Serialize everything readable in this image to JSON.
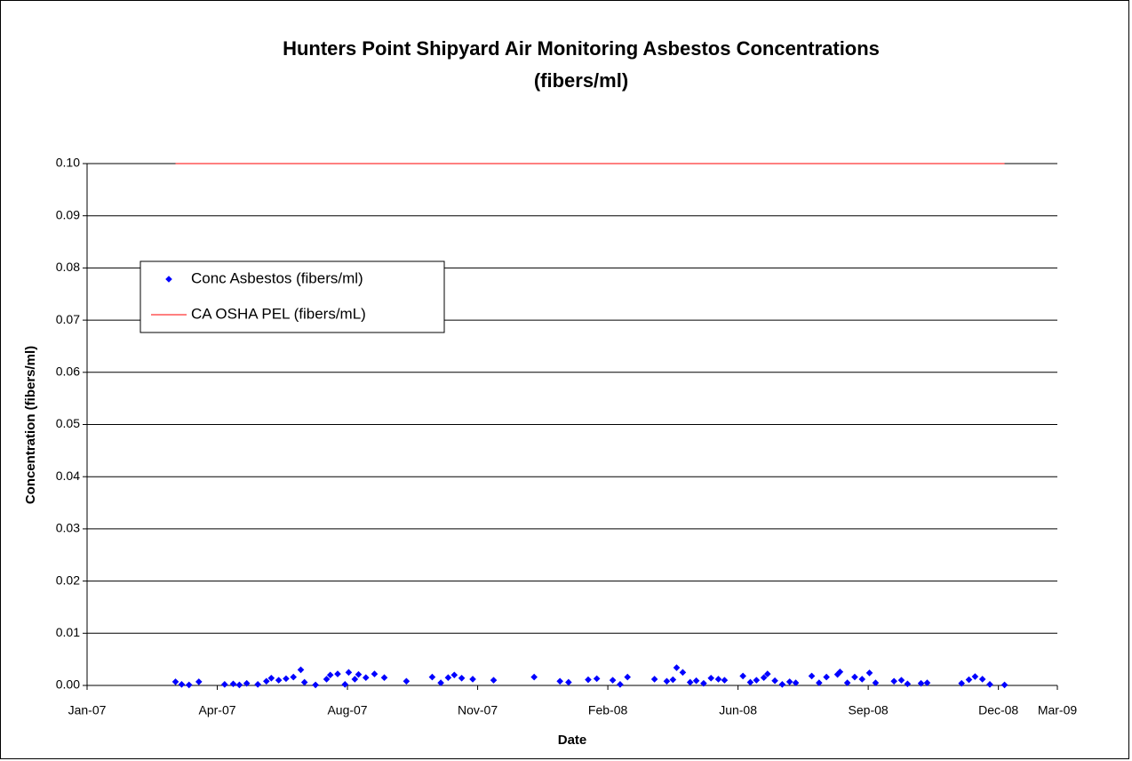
{
  "chart_data": {
    "type": "scatter",
    "title": [
      "Hunters Point Shipyard Air Monitoring Asbestos Concentrations",
      "(fibers/ml)"
    ],
    "x_label": "Date",
    "y_label": "Concentration (fibers/ml)",
    "xlim": [
      39083,
      39873
    ],
    "xticks": [
      {
        "value": 39083,
        "label": "Jan-07"
      },
      {
        "value": 39189,
        "label": "Apr-07"
      },
      {
        "value": 39295,
        "label": "Aug-07"
      },
      {
        "value": 39401,
        "label": "Nov-07"
      },
      {
        "value": 39507,
        "label": "Feb-08"
      },
      {
        "value": 39613,
        "label": "Jun-08"
      },
      {
        "value": 39719,
        "label": "Sep-08"
      },
      {
        "value": 39825,
        "label": "Dec-08"
      },
      {
        "value": 39873,
        "label": "Mar-09"
      }
    ],
    "ylim": [
      0,
      0.1
    ],
    "yticks": [
      {
        "value": 0,
        "label": "0.00"
      },
      {
        "value": 0.01,
        "label": "0.01"
      },
      {
        "value": 0.02,
        "label": "0.02"
      },
      {
        "value": 0.03,
        "label": "0.03"
      },
      {
        "value": 0.04,
        "label": "0.04"
      },
      {
        "value": 0.05,
        "label": "0.05"
      },
      {
        "value": 0.06,
        "label": "0.06"
      },
      {
        "value": 0.07,
        "label": "0.07"
      },
      {
        "value": 0.08,
        "label": "0.08"
      },
      {
        "value": 0.09,
        "label": "0.09"
      },
      {
        "value": 0.1,
        "label": "0.10"
      }
    ],
    "grid": true,
    "legend": "upper left",
    "series": [
      {
        "name": "Conc Asbestos (fibers/ml)",
        "color": "#0000ff",
        "kind": "scatter",
        "x": [
          39155,
          39160,
          39166,
          39174,
          39195,
          39202,
          39207,
          39213,
          39222,
          39229,
          39233,
          39239,
          39245,
          39251,
          39257,
          39260,
          39269,
          39278,
          39281,
          39287,
          39293,
          39296,
          39301,
          39304,
          39310,
          39317,
          39325,
          39343,
          39364,
          39371,
          39377,
          39382,
          39388,
          39397,
          39414,
          39447,
          39468,
          39475,
          39491,
          39498,
          39511,
          39517,
          39523,
          39545,
          39555,
          39560,
          39563,
          39568,
          39574,
          39579,
          39585,
          39591,
          39597,
          39602,
          39617,
          39623,
          39628,
          39634,
          39637,
          39643,
          39649,
          39655,
          39660,
          39673,
          39679,
          39685,
          39694,
          39696,
          39702,
          39708,
          39714,
          39720,
          39725,
          39740,
          39746,
          39751,
          39762,
          39767,
          39795,
          39801,
          39806,
          39812,
          39818,
          39830
        ],
        "values": [
          0.0007,
          0.0002,
          0.0001,
          0.0007,
          0.0002,
          0.0003,
          0.0001,
          0.0004,
          0.0002,
          0.0008,
          0.0014,
          0.001,
          0.0013,
          0.0016,
          0.003,
          0.0006,
          0.0001,
          0.0012,
          0.002,
          0.0022,
          0.0002,
          0.0025,
          0.0012,
          0.0021,
          0.0015,
          0.0022,
          0.0015,
          0.0008,
          0.0016,
          0.0005,
          0.0015,
          0.002,
          0.0014,
          0.0012,
          0.001,
          0.0016,
          0.0008,
          0.0006,
          0.0011,
          0.0013,
          0.001,
          0.0002,
          0.0016,
          0.0012,
          0.0008,
          0.0011,
          0.0034,
          0.0025,
          0.0006,
          0.0009,
          0.0004,
          0.0014,
          0.0012,
          0.001,
          0.0018,
          0.0006,
          0.001,
          0.0015,
          0.0022,
          0.0009,
          0.0002,
          0.0007,
          0.0005,
          0.0018,
          0.0005,
          0.0016,
          0.0021,
          0.0026,
          0.0005,
          0.0016,
          0.0012,
          0.0024,
          0.0005,
          0.0008,
          0.001,
          0.0003,
          0.0004,
          0.0005,
          0.0004,
          0.0011,
          0.0017,
          0.0012,
          0.0002,
          0.0001
        ]
      },
      {
        "name": "CA OSHA PEL (fibers/mL)",
        "color": "#ff0000",
        "kind": "line",
        "x": [
          39155,
          39830
        ],
        "values": [
          0.1,
          0.1
        ]
      }
    ]
  }
}
